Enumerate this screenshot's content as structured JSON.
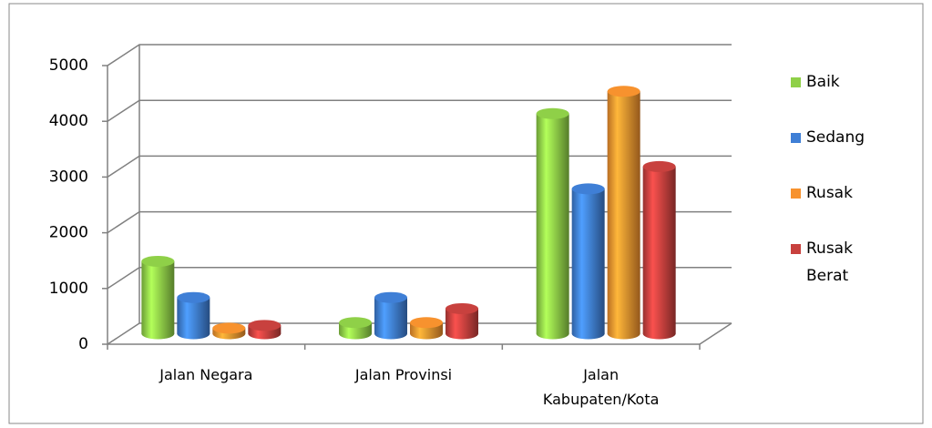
{
  "chart_data": {
    "type": "bar3d-cylinder",
    "categories": [
      "Jalan Negara",
      "Jalan Provinsi",
      "Jalan Kabupaten/Kota"
    ],
    "series": [
      {
        "name": "Baik",
        "color": "#8fd048",
        "values": [
          1300,
          200,
          3950
        ]
      },
      {
        "name": "Sedang",
        "color": "#3f7fd6",
        "values": [
          650,
          650,
          2600
        ]
      },
      {
        "name": "Rusak",
        "color": "#f7922e",
        "values": [
          100,
          200,
          4350
        ]
      },
      {
        "name": "Rusak Berat",
        "color": "#c8413e",
        "values": [
          150,
          450,
          3000
        ]
      }
    ],
    "ylim": [
      0,
      5000
    ],
    "yticks": [
      0,
      1000,
      2000,
      3000,
      4000,
      5000
    ],
    "grid": true,
    "legend": "right"
  }
}
